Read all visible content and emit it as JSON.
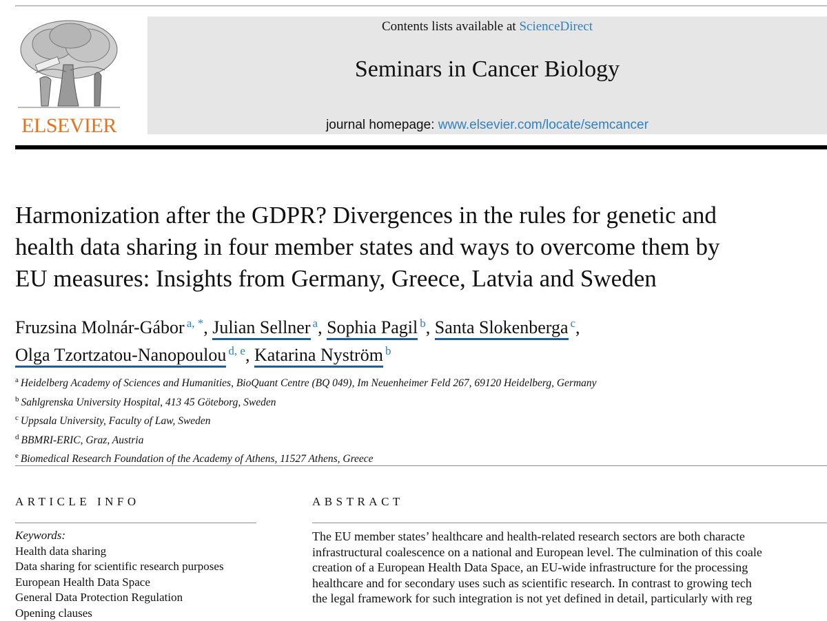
{
  "header": {
    "contents_prefix": "Contents lists available at",
    "contents_link": "ScienceDirect",
    "journal_title": "Seminars in Cancer Biology",
    "homepage_prefix": "journal homepage:",
    "homepage_link": "www.elsevier.com/locate/semcancer",
    "publisher": "ELSEVIER",
    "colors": {
      "link": "#2f80c4",
      "publisher_orange": "#e9711c",
      "banner_bg": "#e6e6e6"
    }
  },
  "article": {
    "title_lines": [
      "Harmonization after the GDPR? Divergences in the rules for genetic and",
      "health data sharing in four member states and ways to overcome them by",
      "EU measures: Insights from Germany, Greece, Latvia and Sweden"
    ],
    "authors": [
      {
        "name": "Fruzsina Molnár-Gábor",
        "sup": "a, *",
        "suffix": ",",
        "underlined": false
      },
      {
        "name": "Julian Sellner",
        "sup": "a",
        "suffix": ",",
        "underlined": true
      },
      {
        "name": "Sophia Pagil",
        "sup": "b",
        "suffix": ",",
        "underlined": true
      },
      {
        "name": "Santa Slokenberga",
        "sup": "c",
        "suffix": ",",
        "underlined": true
      },
      {
        "name": "Olga Tzortzatou-Nanopoulou",
        "sup": "d, e",
        "suffix": ",",
        "underlined": true
      },
      {
        "name": "Katarina Nyström",
        "sup": "b",
        "suffix": "",
        "underlined": true
      }
    ],
    "affiliations": [
      {
        "key": "a",
        "text": "Heidelberg Academy of Sciences and Humanities, BioQuant Centre (BQ 049), Im Neuenheimer Feld 267, 69120 Heidelberg, Germany"
      },
      {
        "key": "b",
        "text": "Sahlgrenska University Hospital, 413 45 Göteborg, Sweden"
      },
      {
        "key": "c",
        "text": "Uppsala University, Faculty of Law, Sweden"
      },
      {
        "key": "d",
        "text": "BBMRI-ERIC, Graz, Austria"
      },
      {
        "key": "e",
        "text": "Biomedical Research Foundation of the Academy of Athens, 11527 Athens, Greece"
      }
    ]
  },
  "article_info": {
    "heading": "ARTICLE INFO",
    "keywords_label": "Keywords:",
    "keywords": [
      "Health data sharing",
      "Data sharing for scientific research purposes",
      "European Health Data Space",
      "General Data Protection Regulation",
      "Opening clauses"
    ]
  },
  "abstract": {
    "heading": "ABSTRACT",
    "lines": [
      "The EU member states’ healthcare and health-related research sectors are both characte",
      "infrastructural coalescence on a national and European level. The culmination of this coale",
      "creation of a European Health Data Space, an EU-wide infrastructure for the processing",
      "healthcare and for secondary uses such as scientific research. In contrast to growing tech",
      "the legal framework for such integration is not yet defined in detail, particularly with reg"
    ]
  }
}
